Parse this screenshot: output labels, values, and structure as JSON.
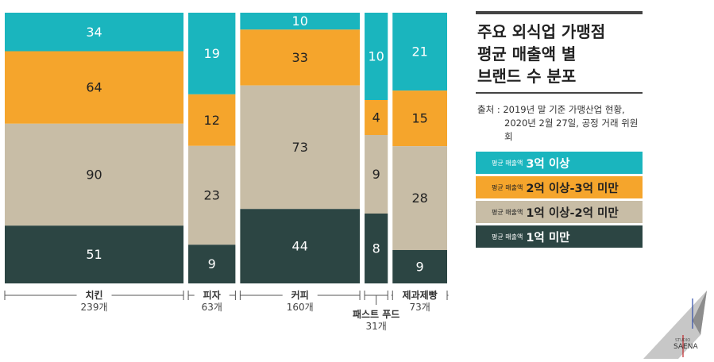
{
  "chart_data": {
    "type": "mosaic",
    "title": "주요 외식업 가맹점\n평균 매출액 별\n브랜드 수 분포",
    "source_line1": "출처 : 2019년 말 기준  가맹산업 현황,",
    "source_line2": "2020년 2월 27일, 공정 거래 위원회",
    "series": [
      {
        "key": "over3",
        "prefix": "평균 매출액",
        "range": "3억 이상",
        "color": "#1ab5be",
        "text_color": "#ffffff"
      },
      {
        "key": "2to3",
        "prefix": "평균 매출액",
        "range": "2억 이상-3억 미만",
        "color": "#f5a52c",
        "text_color": "#222222"
      },
      {
        "key": "1to2",
        "prefix": "평균 매출액",
        "range": "1억 이상-2억 미만",
        "color": "#c8bda6",
        "text_color": "#222222"
      },
      {
        "key": "under1",
        "prefix": "평균 매출액",
        "range": "1억 미만",
        "color": "#2c4543",
        "text_color": "#ffffff"
      }
    ],
    "categories": [
      {
        "name": "치킨",
        "count_label": "239개",
        "total": 239,
        "values": [
          34,
          64,
          90,
          51
        ]
      },
      {
        "name": "피자",
        "count_label": "63개",
        "total": 63,
        "values": [
          19,
          12,
          23,
          9
        ]
      },
      {
        "name": "커피",
        "count_label": "160개",
        "total": 160,
        "values": [
          10,
          33,
          73,
          44
        ]
      },
      {
        "name": "패스트 푸드",
        "count_label": "31개",
        "total": 31,
        "values": [
          10,
          4,
          9,
          8
        ]
      },
      {
        "name": "제과제빵",
        "count_label": "73개",
        "total": 73,
        "values": [
          21,
          15,
          28,
          9
        ]
      }
    ]
  },
  "logo": {
    "studio": "STUDIO",
    "name": "SAENA"
  }
}
